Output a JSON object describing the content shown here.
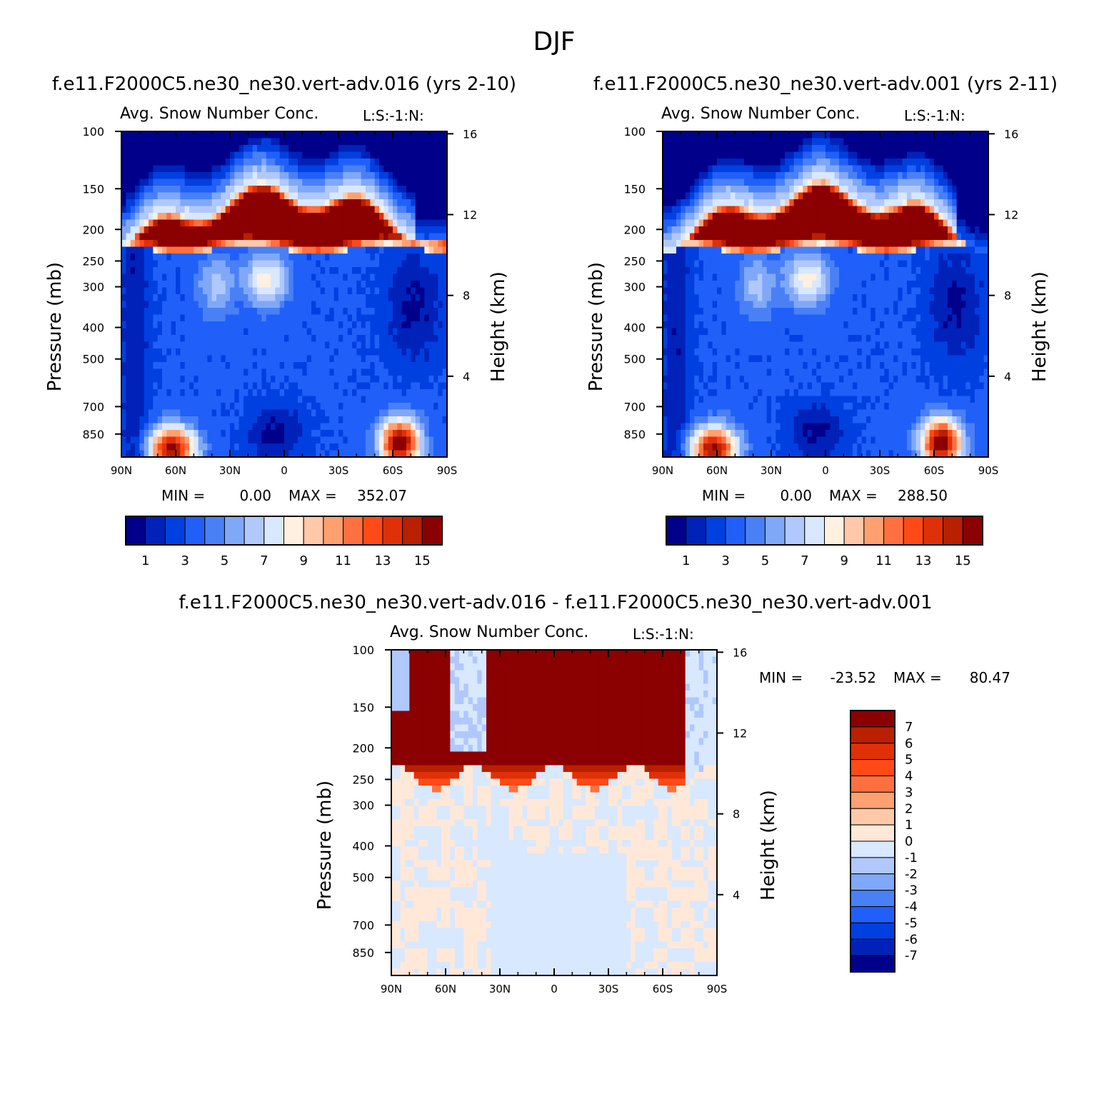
{
  "page_title": "DJF",
  "colors": {
    "abs_palette": [
      "#00008b",
      "#0022b8",
      "#0040e0",
      "#2060f8",
      "#4a80f5",
      "#80a8f8",
      "#b0c8fb",
      "#d8e8ff",
      "#fff0e0",
      "#ffc8a8",
      "#ffa070",
      "#ff7040",
      "#ff4a18",
      "#e03008",
      "#b82000",
      "#8b0000"
    ],
    "diff_palette": [
      "#00008b",
      "#0022b8",
      "#0040e0",
      "#2060f8",
      "#4a80f5",
      "#80a8f8",
      "#b0c8fb",
      "#d8e8ff",
      "#ffe8d8",
      "#ffc8a8",
      "#ffa070",
      "#ff7040",
      "#ff4a18",
      "#e03008",
      "#b82000",
      "#8b0000"
    ]
  },
  "chart_data": [
    {
      "type": "heatmap",
      "case_title": "f.e11.F2000C5.ne30_ne30.vert-adv.016 (yrs 2-10)",
      "title": "Avg. Snow Number Conc.",
      "units_label": "L:S:-1:N:",
      "xlabel": "",
      "ylabel": "Pressure (mb)",
      "ylabel_right": "Height (km)",
      "x_ticks": [
        "90N",
        "60N",
        "30N",
        "0",
        "30S",
        "60S",
        "90S"
      ],
      "x_values": [
        90,
        60,
        30,
        0,
        -30,
        -60,
        -90
      ],
      "y_ticks": [
        "100",
        "150",
        "200",
        "250",
        "300",
        "400",
        "500",
        "700",
        "850"
      ],
      "y_values": [
        100,
        150,
        200,
        250,
        300,
        400,
        500,
        700,
        850
      ],
      "ylim": [
        100,
        1000
      ],
      "y_scale": "log",
      "height_ticks": [
        "16",
        "12",
        "8",
        "4"
      ],
      "height_values": [
        16,
        12,
        8,
        4
      ],
      "min_label": "MIN =",
      "min_value": "0.00",
      "max_label": "MAX =",
      "max_value": "352.07",
      "colorbar": {
        "orientation": "horizontal",
        "labels": [
          "1",
          "3",
          "5",
          "7",
          "9",
          "11",
          "13",
          "15"
        ],
        "levels": [
          1,
          2,
          3,
          4,
          5,
          6,
          7,
          8,
          9,
          10,
          11,
          12,
          13,
          14,
          15
        ]
      }
    },
    {
      "type": "heatmap",
      "case_title": "f.e11.F2000C5.ne30_ne30.vert-adv.001 (yrs 2-11)",
      "title": "Avg. Snow Number Conc.",
      "units_label": "L:S:-1:N:",
      "xlabel": "",
      "ylabel": "Pressure (mb)",
      "ylabel_right": "Height (km)",
      "x_ticks": [
        "90N",
        "60N",
        "30N",
        "0",
        "30S",
        "60S",
        "90S"
      ],
      "x_values": [
        90,
        60,
        30,
        0,
        -30,
        -60,
        -90
      ],
      "y_ticks": [
        "100",
        "150",
        "200",
        "250",
        "300",
        "400",
        "500",
        "700",
        "850"
      ],
      "y_values": [
        100,
        150,
        200,
        250,
        300,
        400,
        500,
        700,
        850
      ],
      "ylim": [
        100,
        1000
      ],
      "y_scale": "log",
      "height_ticks": [
        "16",
        "12",
        "8",
        "4"
      ],
      "height_values": [
        16,
        12,
        8,
        4
      ],
      "min_label": "MIN =",
      "min_value": "0.00",
      "max_label": "MAX =",
      "max_value": "288.50",
      "colorbar": {
        "orientation": "horizontal",
        "labels": [
          "1",
          "3",
          "5",
          "7",
          "9",
          "11",
          "13",
          "15"
        ],
        "levels": [
          1,
          2,
          3,
          4,
          5,
          6,
          7,
          8,
          9,
          10,
          11,
          12,
          13,
          14,
          15
        ]
      }
    },
    {
      "type": "heatmap",
      "case_title": "f.e11.F2000C5.ne30_ne30.vert-adv.016 - f.e11.F2000C5.ne30_ne30.vert-adv.001",
      "title": "Avg. Snow Number Conc.",
      "units_label": "L:S:-1:N:",
      "xlabel": "",
      "ylabel": "Pressure (mb)",
      "ylabel_right": "Height (km)",
      "x_ticks": [
        "90N",
        "60N",
        "30N",
        "0",
        "30S",
        "60S",
        "90S"
      ],
      "x_values": [
        90,
        60,
        30,
        0,
        -30,
        -60,
        -90
      ],
      "y_ticks": [
        "100",
        "150",
        "200",
        "250",
        "300",
        "400",
        "500",
        "700",
        "850"
      ],
      "y_values": [
        100,
        150,
        200,
        250,
        300,
        400,
        500,
        700,
        850
      ],
      "ylim": [
        100,
        1000
      ],
      "y_scale": "log",
      "height_ticks": [
        "16",
        "12",
        "8",
        "4"
      ],
      "height_values": [
        16,
        12,
        8,
        4
      ],
      "min_label": "MIN =",
      "min_value": "-23.52",
      "max_label": "MAX =",
      "max_value": "80.47",
      "colorbar": {
        "orientation": "vertical",
        "labels": [
          "7",
          "6",
          "5",
          "4",
          "3",
          "2",
          "1",
          "0",
          "-1",
          "-2",
          "-3",
          "-4",
          "-5",
          "-6",
          "-7"
        ],
        "levels": [
          -7,
          -6,
          -5,
          -4,
          -3,
          -2,
          -1,
          0,
          1,
          2,
          3,
          4,
          5,
          6,
          7
        ]
      }
    }
  ]
}
